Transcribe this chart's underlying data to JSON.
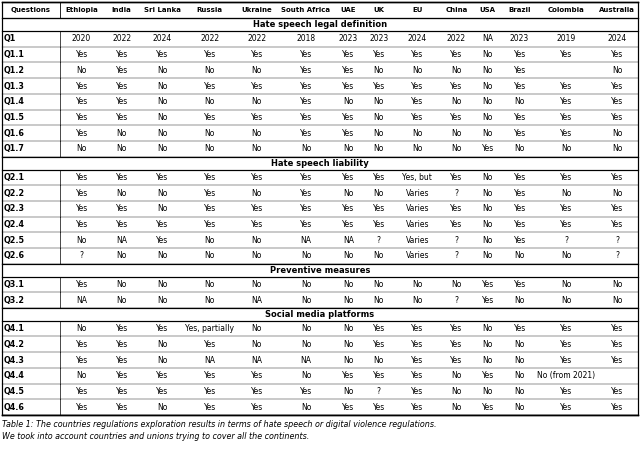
{
  "title_line1": "Table 1: The countries regulations exploration results in terms of hate speech or digital violence regulations.",
  "title_line2": "We took into account countries and unions trying to cover all the continents.",
  "col_headers": [
    "Questions",
    "Ethiopia",
    "India",
    "Sri Lanka",
    "Russia",
    "Ukraine",
    "South Africa",
    "UAE",
    "UK",
    "EU",
    "China",
    "USA",
    "Brazil",
    "Colombia",
    "Australia"
  ],
  "rows": [
    [
      "Q1",
      "2020",
      "2022",
      "2024",
      "2022",
      "2022",
      "2018",
      "2023",
      "2023",
      "2024",
      "2022",
      "NA",
      "2023",
      "2019",
      "2024"
    ],
    [
      "Q1.1",
      "Yes",
      "Yes",
      "Yes",
      "Yes",
      "Yes",
      "Yes",
      "Yes",
      "Yes",
      "Yes",
      "Yes",
      "No",
      "Yes",
      "Yes",
      "Yes"
    ],
    [
      "Q1.2",
      "No",
      "Yes",
      "No",
      "No",
      "No",
      "Yes",
      "Yes",
      "No",
      "No",
      "No",
      "No",
      "Yes",
      "",
      "No"
    ],
    [
      "Q1.3",
      "Yes",
      "Yes",
      "No",
      "Yes",
      "Yes",
      "Yes",
      "Yes",
      "Yes",
      "Yes",
      "Yes",
      "No",
      "Yes",
      "Yes",
      "Yes"
    ],
    [
      "Q1.4",
      "Yes",
      "Yes",
      "No",
      "No",
      "No",
      "Yes",
      "No",
      "No",
      "Yes",
      "No",
      "No",
      "No",
      "Yes",
      "Yes"
    ],
    [
      "Q1.5",
      "Yes",
      "Yes",
      "No",
      "Yes",
      "Yes",
      "Yes",
      "Yes",
      "No",
      "Yes",
      "Yes",
      "No",
      "Yes",
      "Yes",
      "Yes"
    ],
    [
      "Q1.6",
      "Yes",
      "No",
      "No",
      "No",
      "No",
      "Yes",
      "Yes",
      "No",
      "No",
      "No",
      "No",
      "Yes",
      "Yes",
      "No"
    ],
    [
      "Q1.7",
      "No",
      "No",
      "No",
      "No",
      "No",
      "No",
      "No",
      "No",
      "No",
      "No",
      "Yes",
      "No",
      "No",
      "No"
    ],
    [
      "Q2.1",
      "Yes",
      "Yes",
      "Yes",
      "Yes",
      "Yes",
      "Yes",
      "Yes",
      "Yes",
      "Yes, but",
      "Yes",
      "No",
      "Yes",
      "Yes",
      "Yes"
    ],
    [
      "Q2.2",
      "Yes",
      "No",
      "No",
      "Yes",
      "No",
      "Yes",
      "No",
      "No",
      "Varies",
      "?",
      "No",
      "Yes",
      "No",
      "No"
    ],
    [
      "Q2.3",
      "Yes",
      "Yes",
      "No",
      "Yes",
      "Yes",
      "Yes",
      "Yes",
      "Yes",
      "Varies",
      "Yes",
      "No",
      "Yes",
      "Yes",
      "Yes"
    ],
    [
      "Q2.4",
      "Yes",
      "Yes",
      "Yes",
      "Yes",
      "Yes",
      "Yes",
      "Yes",
      "Yes",
      "Varies",
      "Yes",
      "No",
      "Yes",
      "Yes",
      "Yes"
    ],
    [
      "Q2.5",
      "No",
      "NA",
      "Yes",
      "No",
      "No",
      "NA",
      "NA",
      "?",
      "Varies",
      "?",
      "No",
      "Yes",
      "?",
      "?"
    ],
    [
      "Q2.6",
      "?",
      "No",
      "No",
      "No",
      "No",
      "No",
      "No",
      "No",
      "Varies",
      "?",
      "No",
      "No",
      "No",
      "?"
    ],
    [
      "Q3.1",
      "Yes",
      "No",
      "No",
      "No",
      "No",
      "No",
      "No",
      "No",
      "No",
      "No",
      "Yes",
      "Yes",
      "No",
      "No"
    ],
    [
      "Q3.2",
      "NA",
      "No",
      "No",
      "No",
      "NA",
      "No",
      "No",
      "No",
      "No",
      "?",
      "Yes",
      "No",
      "No",
      "No"
    ],
    [
      "Q4.1",
      "No",
      "Yes",
      "Yes",
      "Yes, partially",
      "No",
      "No",
      "No",
      "Yes",
      "Yes",
      "Yes",
      "No",
      "Yes",
      "Yes",
      "Yes"
    ],
    [
      "Q4.2",
      "Yes",
      "Yes",
      "No",
      "Yes",
      "No",
      "No",
      "No",
      "Yes",
      "Yes",
      "Yes",
      "No",
      "No",
      "Yes",
      "Yes"
    ],
    [
      "Q4.3",
      "Yes",
      "Yes",
      "No",
      "NA",
      "NA",
      "NA",
      "No",
      "No",
      "Yes",
      "Yes",
      "No",
      "No",
      "Yes",
      "Yes"
    ],
    [
      "Q4.4",
      "No",
      "Yes",
      "Yes",
      "Yes",
      "Yes",
      "No",
      "Yes",
      "Yes",
      "Yes",
      "No",
      "Yes",
      "No",
      "No (from 2021)",
      ""
    ],
    [
      "Q4.5",
      "Yes",
      "Yes",
      "Yes",
      "Yes",
      "Yes",
      "Yes",
      "No",
      "?",
      "Yes",
      "No",
      "No",
      "No",
      "Yes",
      "Yes"
    ],
    [
      "Q4.6",
      "Yes",
      "Yes",
      "No",
      "Yes",
      "Yes",
      "No",
      "Yes",
      "Yes",
      "Yes",
      "No",
      "Yes",
      "No",
      "Yes",
      "Yes"
    ]
  ],
  "sections": [
    {
      "name": "Hate speech legal definition",
      "start": 0,
      "end": 8
    },
    {
      "name": "Hate speech liability",
      "start": 8,
      "end": 14
    },
    {
      "name": "Preventive measures",
      "start": 14,
      "end": 16
    },
    {
      "name": "Social media platforms",
      "start": 16,
      "end": 22
    }
  ]
}
